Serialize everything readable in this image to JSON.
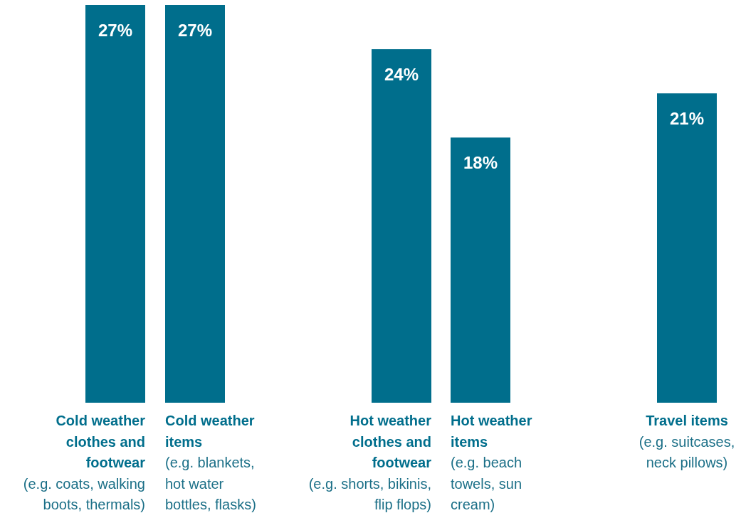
{
  "chart_data": {
    "type": "bar",
    "categories": [
      "Cold weather clothes and footwear\n(e.g. coats, walking boots, thermals)",
      "Cold weather items\n(e.g. blankets, hot water bottles, flasks)",
      "Hot weather clothes and footwear\n(e.g. shorts, bikinis, flip flops)",
      "Hot weather items\n(e.g. beach towels, sun cream)",
      "Travel items\n(e.g. suitcases, neck pillows)"
    ],
    "values": [
      27,
      27,
      24,
      18,
      21
    ],
    "color": "#006e8c",
    "data_labels": true,
    "value_labels": [
      "27%",
      "27%",
      "24%",
      "18%",
      "21%"
    ]
  }
}
